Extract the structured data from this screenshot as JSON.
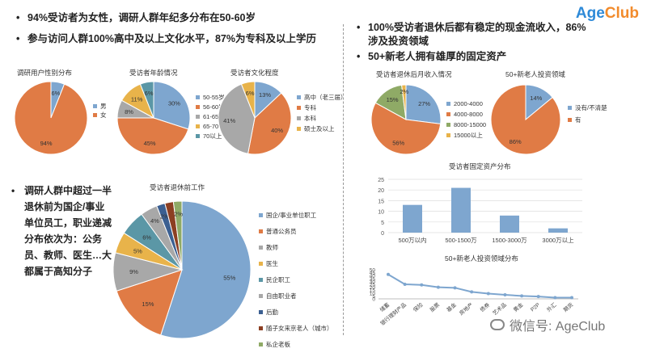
{
  "logo": {
    "age": "Age",
    "club": "Club"
  },
  "bullets_left": [
    "94%受访者为女性，调研人群年纪多分布在50-60岁",
    "参与访问人群100%高中及以上文化水平，87%为专科及以上学历"
  ],
  "bullets_right": [
    "100%受访者退休后都有稳定的现金流收入，86%涉及投资领域",
    "50+新老人拥有雄厚的固定资产"
  ],
  "side_text": "调研人群中超过一半退休前为国企/事业单位员工，职业递减分布依次为：公务员、教师、医生…大都属于高知分子",
  "watermark": "微信号: AgeClub",
  "colors": {
    "blue": "#7ea6cf",
    "orange": "#e07b45",
    "gray": "#a8a8a8",
    "yellow": "#e8b34a",
    "teal": "#5b97a6",
    "olive": "#8faa66",
    "navy": "#3b5f91",
    "darkred": "#8c3f22",
    "line": "#7ea6cf"
  },
  "chart_data": [
    {
      "type": "pie",
      "title": "调研用户性别分布",
      "categories": [
        "男",
        "女"
      ],
      "values": [
        6,
        94
      ],
      "labels": [
        "6%",
        "94%"
      ]
    },
    {
      "type": "pie",
      "title": "受访者年龄情况",
      "categories": [
        "50-55岁",
        "56-60岁",
        "61-65岁",
        "65-70",
        "70以上"
      ],
      "values": [
        30,
        45,
        8,
        11,
        6
      ],
      "labels": [
        "30%",
        "45%",
        "8%",
        "11%",
        "6%"
      ]
    },
    {
      "type": "pie",
      "title": "受访者文化程度",
      "categories": [
        "高中（老三届）",
        "专科",
        "本科",
        "硕士及以上"
      ],
      "values": [
        13,
        40,
        41,
        6
      ],
      "labels": [
        "13%",
        "40%",
        "41%",
        "6%"
      ]
    },
    {
      "type": "pie",
      "title": "受访者退休前工作",
      "categories": [
        "国企/事业单位职工",
        "普通公务员",
        "教师",
        "医生",
        "民企职工",
        "自由职业者",
        "后勤",
        "随子女来京老人（城市）",
        "私企老板"
      ],
      "values": [
        55,
        15,
        9,
        5,
        6,
        4,
        2,
        2,
        2
      ],
      "labels": [
        "55%",
        "15%",
        "9%",
        "5%",
        "6%",
        "4%",
        "2%",
        "",
        "2%"
      ]
    },
    {
      "type": "pie",
      "title": "受访者退休后月收入情况",
      "categories": [
        "2000-4000",
        "4000-8000",
        "8000-15000",
        "15000以上"
      ],
      "values": [
        27,
        56,
        15,
        2
      ],
      "labels": [
        "27%",
        "56%",
        "15%",
        "2%"
      ]
    },
    {
      "type": "pie",
      "title": "50+新老人投资领域",
      "categories": [
        "没有/不清楚",
        "有"
      ],
      "values": [
        14,
        86
      ],
      "labels": [
        "14%",
        "86%"
      ]
    },
    {
      "type": "bar",
      "title": "受访者固定资产分布",
      "categories": [
        "500万以内",
        "500-1500万",
        "1500-3000万",
        "3000万以上"
      ],
      "values": [
        13,
        21,
        8,
        2
      ],
      "ylim": [
        0,
        25
      ],
      "yticks": [
        "0",
        "5",
        "10",
        "15",
        "20",
        "25"
      ],
      "grid": true
    },
    {
      "type": "line",
      "title": "50+新老人投资领域分布",
      "categories": [
        "储蓄",
        "银行理财产品",
        "保险",
        "股票",
        "基金",
        "房地产",
        "债券",
        "艺术品",
        "黄金",
        "P2P",
        "外汇",
        "期货"
      ],
      "values": [
        42,
        25,
        24,
        20,
        19,
        12,
        9,
        7,
        5,
        4,
        2,
        2
      ],
      "ylim": [
        0,
        50
      ],
      "yticks": [
        "0",
        "5",
        "10",
        "15",
        "20",
        "25",
        "30",
        "35",
        "40",
        "45",
        "50"
      ]
    }
  ]
}
